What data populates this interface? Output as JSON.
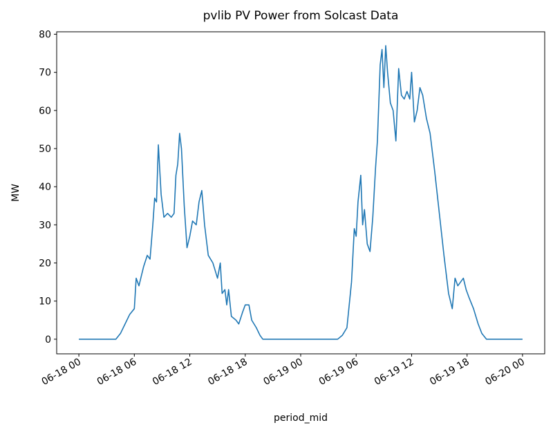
{
  "chart_data": {
    "type": "line",
    "title": "pvlib PV Power from Solcast Data",
    "xlabel": "period_mid",
    "ylabel": "MW",
    "x": [
      "06-18 00:00",
      "06-18 04:00",
      "06-18 04:30",
      "06-18 05:00",
      "06-18 05:30",
      "06-18 06:00",
      "06-18 06:12",
      "06-18 06:30",
      "06-18 07:00",
      "06-18 07:24",
      "06-18 07:42",
      "06-18 08:00",
      "06-18 08:12",
      "06-18 08:24",
      "06-18 08:36",
      "06-18 08:54",
      "06-18 09:12",
      "06-18 09:36",
      "06-18 10:00",
      "06-18 10:18",
      "06-18 10:30",
      "06-18 10:42",
      "06-18 10:54",
      "06-18 11:06",
      "06-18 11:24",
      "06-18 11:42",
      "06-18 12:00",
      "06-18 12:18",
      "06-18 12:42",
      "06-18 13:00",
      "06-18 13:18",
      "06-18 13:36",
      "06-18 14:00",
      "06-18 14:30",
      "06-18 15:00",
      "06-18 15:18",
      "06-18 15:30",
      "06-18 15:48",
      "06-18 16:00",
      "06-18 16:12",
      "06-18 16:30",
      "06-18 17:00",
      "06-18 17:18",
      "06-18 17:42",
      "06-18 18:00",
      "06-18 18:24",
      "06-18 18:42",
      "06-18 19:12",
      "06-18 19:36",
      "06-18 19:54",
      "06-19 00:00",
      "06-19 04:00",
      "06-19 04:30",
      "06-19 05:00",
      "06-19 05:30",
      "06-19 05:48",
      "06-19 06:00",
      "06-19 06:12",
      "06-19 06:30",
      "06-19 06:42",
      "06-19 06:54",
      "06-19 07:12",
      "06-19 07:30",
      "06-19 07:48",
      "06-19 08:06",
      "06-19 08:18",
      "06-19 08:36",
      "06-19 08:48",
      "06-19 09:00",
      "06-19 09:12",
      "06-19 09:24",
      "06-19 09:42",
      "06-19 10:00",
      "06-19 10:18",
      "06-19 10:36",
      "06-19 10:54",
      "06-19 11:12",
      "06-19 11:30",
      "06-19 11:48",
      "06-19 12:00",
      "06-19 12:18",
      "06-19 12:36",
      "06-19 12:54",
      "06-19 13:12",
      "06-19 13:36",
      "06-19 14:00",
      "06-19 14:30",
      "06-19 15:00",
      "06-19 15:30",
      "06-19 16:00",
      "06-19 16:24",
      "06-19 16:42",
      "06-19 17:00",
      "06-19 17:18",
      "06-19 17:36",
      "06-19 17:54",
      "06-19 18:12",
      "06-19 18:42",
      "06-19 19:12",
      "06-19 19:36",
      "06-19 20:06",
      "06-20 00:00"
    ],
    "series": [
      {
        "name": "MW",
        "color": "#1f77b4",
        "values": [
          0,
          0,
          1.5,
          4,
          6.5,
          8,
          16,
          14,
          19,
          22,
          21,
          30,
          37,
          36,
          51,
          38,
          32,
          33,
          32,
          33,
          43,
          46,
          54,
          50,
          35,
          24,
          27,
          31,
          30,
          36,
          39,
          30,
          22,
          20,
          16,
          20,
          12,
          13,
          9,
          13,
          6,
          5,
          4,
          7,
          9,
          9,
          5,
          3,
          1,
          0,
          0,
          0,
          1,
          3,
          15,
          29,
          27,
          36,
          43,
          30,
          34,
          25,
          23,
          32,
          45,
          52,
          72,
          76,
          66,
          77,
          70,
          62,
          60,
          52,
          71,
          64,
          63,
          65,
          63,
          70,
          57,
          60,
          66,
          64,
          58,
          54,
          44,
          33,
          22,
          12,
          8,
          16,
          14,
          15,
          16,
          13,
          11,
          8,
          4,
          1.5,
          0,
          0
        ]
      }
    ],
    "xlim": [
      "06-17 21:36",
      "06-20 02:24"
    ],
    "xticks": [
      "06-18 00",
      "06-18 06",
      "06-18 12",
      "06-18 18",
      "06-19 00",
      "06-19 06",
      "06-19 12",
      "06-19 18",
      "06-20 00"
    ],
    "ylim": [
      -3.84,
      80.64
    ],
    "yticks": [
      0,
      10,
      20,
      30,
      40,
      50,
      60,
      70,
      80
    ],
    "grid": false
  }
}
